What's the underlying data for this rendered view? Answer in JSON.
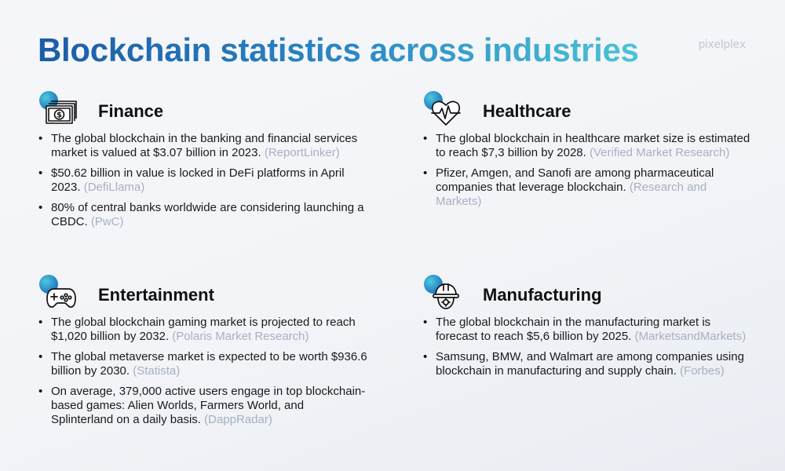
{
  "title": "Blockchain statistics across industries",
  "logo": "pixelplex",
  "sections": {
    "finance": {
      "title": "Finance",
      "icon": "money-bill-icon",
      "items": [
        {
          "text": "The global blockchain in the banking and financial services market is valued at $3.07 billion in 2023.",
          "source": "(ReportLinker)"
        },
        {
          "text": "$50.62 billion in value is locked in DeFi platforms in April 2023.",
          "source": "(DefiLlama)"
        },
        {
          "text": "80% of central banks worldwide are considering launching a CBDC.",
          "source": "(PwC)"
        }
      ]
    },
    "healthcare": {
      "title": "Healthcare",
      "icon": "heart-pulse-icon",
      "items": [
        {
          "text": "The global blockchain in healthcare market size is estimated to reach $7,3 billion by 2028.",
          "source": "(Verified Market Research)"
        },
        {
          "text": "Pfizer, Amgen, and Sanofi are among pharmaceutical companies that leverage blockchain.",
          "source": "(Research and Markets)"
        }
      ]
    },
    "entertainment": {
      "title": "Entertainment",
      "icon": "gamepad-icon",
      "items": [
        {
          "text": "The global blockchain gaming market is projected to reach $1,020 billion by 2032.",
          "source": "(Polaris Market Research)"
        },
        {
          "text": "The global metaverse market is expected to be worth $936.6 billion by 2030.",
          "source": "(Statista)"
        },
        {
          "text": "On average, 379,000 active users engage in top blockchain-based games: Alien Worlds, Farmers World, and Splinterland on a daily basis.",
          "source": "(DappRadar)"
        }
      ]
    },
    "manufacturing": {
      "title": "Manufacturing",
      "icon": "worker-helmet-icon",
      "items": [
        {
          "text": "The global blockchain in the manufacturing market is forecast to reach $5,6 billion by 2025.",
          "source": "(MarketsandMarkets)"
        },
        {
          "text": "Samsung, BMW, and Walmart are among companies using blockchain in manufacturing and supply chain.",
          "source": "(Forbes)"
        }
      ]
    }
  },
  "colors": {
    "title_gradient": [
      "#1c5ca6",
      "#4cc3d6"
    ],
    "source_text": "#a7b0c0",
    "accent_dot": "#2a89c7"
  }
}
